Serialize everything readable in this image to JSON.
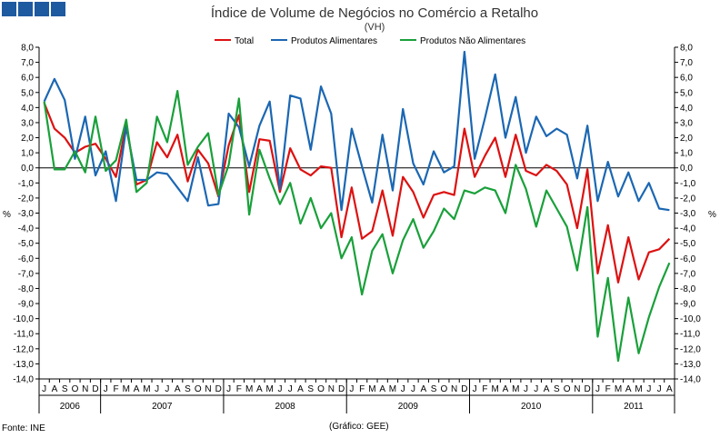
{
  "header": {
    "logo_name": "gee-logo"
  },
  "chart_data": {
    "type": "line",
    "title": "Índice de Volume de Negócios no Comércio a Retalho",
    "subtitle": "(VH)",
    "ylabel_left": "%",
    "ylabel_right": "%",
    "ylim": [
      -14,
      8
    ],
    "ytick_step": 1,
    "ytick_labels": [
      "8,0",
      "7,0",
      "6,0",
      "5,0",
      "4,0",
      "3,0",
      "2,0",
      "1,0",
      "0,0",
      "-1,0",
      "-2,0",
      "-3,0",
      "-4,0",
      "-5,0",
      "-6,0",
      "-7,0",
      "-8,0",
      "-9,0",
      "-10,0",
      "-11,0",
      "-12,0",
      "-13,0",
      "-14,0"
    ],
    "months": [
      "J",
      "A",
      "S",
      "O",
      "N",
      "D",
      "J",
      "F",
      "M",
      "A",
      "M",
      "J",
      "J",
      "A",
      "S",
      "O",
      "N",
      "D",
      "J",
      "F",
      "M",
      "A",
      "M",
      "J",
      "J",
      "A",
      "S",
      "O",
      "N",
      "D",
      "J",
      "F",
      "M",
      "A",
      "M",
      "J",
      "J",
      "A",
      "S",
      "O",
      "N",
      "D",
      "J",
      "F",
      "M",
      "A",
      "M",
      "J",
      "J",
      "A",
      "S",
      "O",
      "N",
      "D",
      "J",
      "F",
      "M",
      "A",
      "M",
      "J",
      "J",
      "A"
    ],
    "years": [
      {
        "label": "2006",
        "start": 0,
        "count": 6
      },
      {
        "label": "2007",
        "start": 6,
        "count": 12
      },
      {
        "label": "2008",
        "start": 18,
        "count": 12
      },
      {
        "label": "2009",
        "start": 30,
        "count": 12
      },
      {
        "label": "2010",
        "start": 42,
        "count": 12
      },
      {
        "label": "2011",
        "start": 54,
        "count": 8
      }
    ],
    "series": [
      {
        "name": "Total",
        "color": "#dd1111",
        "values": [
          4.3,
          2.6,
          2.0,
          1.0,
          1.4,
          1.6,
          0.6,
          -0.6,
          2.9,
          -1.1,
          -0.8,
          1.7,
          0.7,
          2.2,
          -0.9,
          1.2,
          0.3,
          -1.9,
          1.5,
          3.5,
          -1.6,
          1.9,
          1.8,
          -1.6,
          1.3,
          -0.1,
          -0.5,
          0.1,
          0.0,
          -4.6,
          -1.3,
          -4.7,
          -4.2,
          -1.5,
          -4.5,
          -0.6,
          -1.6,
          -3.3,
          -1.8,
          -1.6,
          -1.8,
          2.6,
          -0.6,
          0.8,
          2.0,
          -0.6,
          2.2,
          -0.2,
          -0.5,
          0.2,
          -0.2,
          -1.1,
          -4.0,
          -0.1,
          -7.0,
          -3.8,
          -7.6,
          -4.6,
          -7.4,
          -5.6,
          -5.4,
          -4.7
        ]
      },
      {
        "name": "Produtos Alimentares",
        "color": "#1b67b3",
        "values": [
          4.4,
          5.9,
          4.5,
          0.6,
          3.4,
          -0.5,
          1.1,
          -2.2,
          2.7,
          -0.8,
          -0.8,
          -0.3,
          -0.4,
          -1.3,
          -2.2,
          0.7,
          -2.5,
          -2.4,
          3.6,
          2.7,
          0.1,
          2.8,
          4.4,
          -1.4,
          4.8,
          4.6,
          1.2,
          5.4,
          3.6,
          -2.8,
          2.6,
          0.1,
          -2.3,
          2.2,
          -1.5,
          3.9,
          0.3,
          -1.1,
          1.1,
          -0.3,
          0.1,
          7.7,
          0.6,
          3.3,
          6.2,
          2.0,
          4.7,
          1.0,
          3.4,
          2.1,
          2.6,
          2.2,
          -0.7,
          2.8,
          -2.2,
          0.4,
          -1.9,
          -0.3,
          -2.2,
          -1.0,
          -2.7,
          -2.8
        ]
      },
      {
        "name": "Produtos Não Alimentares",
        "color": "#19a03a",
        "values": [
          4.4,
          -0.1,
          -0.1,
          1.1,
          -0.3,
          3.4,
          -0.2,
          0.5,
          3.2,
          -1.6,
          -1.0,
          3.4,
          1.7,
          5.1,
          0.2,
          1.4,
          2.3,
          -1.8,
          0.2,
          4.6,
          -3.1,
          1.2,
          -0.7,
          -2.4,
          -1.0,
          -3.7,
          -2.0,
          -4.0,
          -3.0,
          -6.0,
          -4.6,
          -8.4,
          -5.5,
          -4.4,
          -7.0,
          -4.8,
          -3.4,
          -5.3,
          -4.2,
          -2.7,
          -3.4,
          -1.5,
          -1.7,
          -1.3,
          -1.5,
          -3.0,
          0.2,
          -1.4,
          -3.9,
          -1.5,
          -2.7,
          -3.9,
          -6.8,
          -2.6,
          -11.2,
          -7.3,
          -12.8,
          -8.6,
          -12.3,
          -9.9,
          -7.9,
          -6.3
        ]
      }
    ]
  },
  "footer": {
    "source": "Fonte: INE",
    "credit": "(Gráfico: GEE)"
  }
}
